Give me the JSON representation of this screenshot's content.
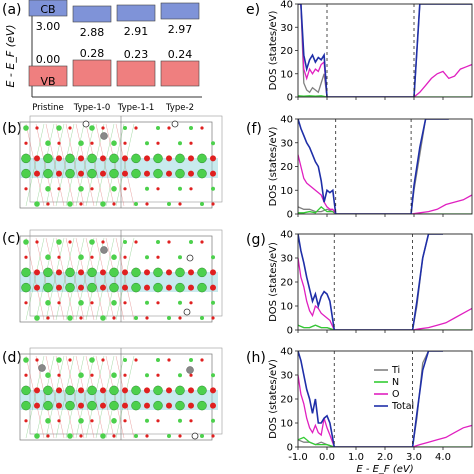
{
  "panel_labels": {
    "a": "(a)",
    "b": "(b)",
    "c": "(c)",
    "d": "(d)",
    "e": "e)",
    "f": "(f)",
    "g": "(g)",
    "h": "(h)"
  },
  "band": {
    "ylabel": "E - E_F (eV)",
    "cb_label": "CB",
    "vb_label": "VB",
    "structures": [
      "Pristine",
      "Type-1-0",
      "Type-1-1",
      "Type-2"
    ],
    "cb_values": [
      "3.00",
      "2.88",
      "2.91",
      "2.97"
    ],
    "vb_values": [
      "0.00",
      "0.28",
      "0.23",
      "0.24"
    ],
    "cb_color": "#7f93d8",
    "vb_color": "#ef7f7f"
  },
  "atoms": {
    "ti_color": "#888888",
    "n_color": "#4cd04c",
    "o_color": "#e02020",
    "layer_color": "#9ad8e0"
  },
  "chart_data": [
    {
      "type": "line",
      "panel": "e",
      "ylabel": "DOS (states/eV)",
      "xlim": [
        -1.0,
        5.0
      ],
      "ylim": [
        0,
        40
      ],
      "yticks": [
        0,
        10,
        20,
        30,
        40
      ],
      "vlines": [
        0.0,
        3.0
      ],
      "series": [
        {
          "name": "Ti",
          "color": "#808080",
          "x": [
            -1.0,
            -0.9,
            -0.8,
            -0.7,
            -0.6,
            -0.5,
            -0.4,
            -0.3,
            -0.2,
            -0.1,
            0.0,
            3.0,
            3.2,
            3.4,
            3.6,
            3.8,
            4.0,
            4.2,
            4.4,
            4.6,
            4.8,
            5.0
          ],
          "y": [
            40,
            40,
            6,
            3,
            2,
            4,
            3,
            2,
            6,
            10,
            0,
            0,
            40,
            40,
            40,
            40,
            40,
            40,
            40,
            40,
            40,
            40
          ]
        },
        {
          "name": "N",
          "color": "#33cc33",
          "x": [
            -1.0,
            -0.8,
            -0.6,
            -0.4,
            -0.2,
            0.0,
            3.0,
            5.0
          ],
          "y": [
            0.5,
            0.4,
            0.5,
            0.4,
            0.5,
            0,
            0,
            0
          ]
        },
        {
          "name": "O",
          "color": "#e020c0",
          "x": [
            -1.0,
            -0.9,
            -0.8,
            -0.7,
            -0.6,
            -0.5,
            -0.4,
            -0.3,
            -0.2,
            -0.1,
            0.0,
            3.0,
            3.2,
            3.4,
            3.6,
            3.8,
            4.0,
            4.2,
            4.4,
            4.6,
            4.8,
            5.0
          ],
          "y": [
            40,
            40,
            12,
            8,
            12,
            10,
            12,
            11,
            14,
            15,
            0,
            0,
            2,
            5,
            8,
            10,
            11,
            8,
            9,
            12,
            13,
            14
          ]
        },
        {
          "name": "Total",
          "color": "#1f2fa8",
          "x": [
            -1.0,
            -0.9,
            -0.8,
            -0.7,
            -0.6,
            -0.5,
            -0.4,
            -0.3,
            -0.2,
            -0.1,
            0.0,
            3.0,
            3.2,
            3.4,
            3.6,
            3.8,
            4.0,
            4.2,
            4.4,
            4.6,
            4.8,
            5.0
          ],
          "y": [
            40,
            40,
            18,
            12,
            16,
            18,
            15,
            17,
            16,
            18,
            0,
            0,
            40,
            40,
            40,
            40,
            40,
            40,
            40,
            40,
            40,
            40
          ]
        }
      ]
    },
    {
      "type": "line",
      "panel": "f",
      "ylabel": "DOS (states/eV)",
      "xlim": [
        -1.0,
        5.0
      ],
      "ylim": [
        0,
        40
      ],
      "yticks": [
        0,
        10,
        20,
        30,
        40
      ],
      "vlines": [
        0.3,
        2.9
      ],
      "series": [
        {
          "name": "Ti",
          "color": "#808080",
          "x": [
            -1.0,
            -0.8,
            -0.6,
            -0.4,
            -0.2,
            0.0,
            0.2,
            0.3,
            2.9,
            3.0,
            3.2,
            3.4,
            3.6,
            3.8,
            4.0,
            4.2
          ],
          "y": [
            3,
            2,
            2,
            1,
            1,
            2,
            1,
            0,
            0,
            10,
            25,
            40,
            40,
            40,
            40,
            40
          ]
        },
        {
          "name": "N",
          "color": "#33cc33",
          "x": [
            -1.0,
            -0.8,
            -0.6,
            -0.4,
            -0.2,
            0.0,
            0.2,
            0.3,
            2.9,
            5.0
          ],
          "y": [
            0.5,
            0.5,
            1,
            0.5,
            3,
            1,
            1,
            0,
            0,
            0
          ]
        },
        {
          "name": "O",
          "color": "#e020c0",
          "x": [
            -1.0,
            -0.9,
            -0.8,
            -0.7,
            -0.6,
            -0.5,
            -0.4,
            -0.3,
            -0.2,
            -0.1,
            0.0,
            0.1,
            0.2,
            0.3,
            2.9,
            3.2,
            3.5,
            3.8,
            4.1,
            4.4,
            4.7,
            5.0
          ],
          "y": [
            25,
            20,
            15,
            13,
            12,
            11,
            10,
            9,
            8,
            5,
            3,
            2,
            2,
            0,
            0,
            0.5,
            1,
            2,
            4,
            5,
            6,
            8
          ]
        },
        {
          "name": "Total",
          "color": "#1f2fa8",
          "x": [
            -1.0,
            -0.9,
            -0.8,
            -0.7,
            -0.6,
            -0.5,
            -0.4,
            -0.3,
            -0.2,
            -0.1,
            0.0,
            0.1,
            0.2,
            0.3,
            2.9,
            3.0,
            3.2,
            3.4,
            3.6,
            3.8,
            4.0,
            4.2
          ],
          "y": [
            40,
            36,
            33,
            30,
            28,
            25,
            22,
            20,
            14,
            5,
            10,
            9,
            10,
            0,
            0,
            12,
            28,
            40,
            40,
            40,
            40,
            40
          ]
        }
      ]
    },
    {
      "type": "line",
      "panel": "g",
      "ylabel": "DOS (states/eV)",
      "xlim": [
        -1.0,
        5.0
      ],
      "ylim": [
        0,
        40
      ],
      "yticks": [
        0,
        10,
        20,
        30,
        40
      ],
      "vlines": [
        0.25,
        2.95
      ],
      "series": [
        {
          "name": "Ti",
          "color": "#808080",
          "x": [
            -1.0,
            -0.8,
            -0.6,
            -0.4,
            -0.2,
            0.0,
            0.25,
            2.95,
            3.1,
            3.3,
            3.5,
            3.7,
            4.0
          ],
          "y": [
            2,
            1,
            1,
            2,
            1,
            1,
            0,
            0,
            10,
            30,
            40,
            40,
            40
          ]
        },
        {
          "name": "N",
          "color": "#33cc33",
          "x": [
            -1.0,
            -0.8,
            -0.6,
            -0.4,
            -0.2,
            0.0,
            0.25,
            2.95,
            5.0
          ],
          "y": [
            2,
            1,
            1,
            2,
            1,
            1,
            0,
            0,
            0
          ]
        },
        {
          "name": "O",
          "color": "#e020c0",
          "x": [
            -1.0,
            -0.9,
            -0.8,
            -0.7,
            -0.6,
            -0.5,
            -0.4,
            -0.3,
            -0.2,
            -0.1,
            0.0,
            0.1,
            0.25,
            2.95,
            3.2,
            3.5,
            3.8,
            4.1,
            4.4,
            4.7,
            5.0
          ],
          "y": [
            30,
            22,
            18,
            12,
            8,
            6,
            10,
            9,
            7,
            6,
            5,
            4,
            0,
            0,
            0.5,
            1,
            2,
            3,
            5,
            7,
            9
          ]
        },
        {
          "name": "Total",
          "color": "#1f2fa8",
          "x": [
            -1.0,
            -0.9,
            -0.8,
            -0.7,
            -0.6,
            -0.5,
            -0.4,
            -0.3,
            -0.2,
            -0.1,
            0.0,
            0.1,
            0.25,
            2.95,
            3.1,
            3.3,
            3.5,
            3.7,
            4.0
          ],
          "y": [
            40,
            33,
            28,
            22,
            17,
            12,
            15,
            10,
            14,
            16,
            15,
            12,
            0,
            0,
            12,
            30,
            40,
            40,
            40
          ]
        }
      ]
    },
    {
      "type": "line",
      "panel": "h",
      "ylabel": "DOS (states/eV)",
      "xlabel": "E - E_F (eV)",
      "xlim": [
        -1.0,
        5.0
      ],
      "ylim": [
        0,
        40
      ],
      "yticks": [
        0,
        10,
        20,
        30,
        40
      ],
      "xticks": [
        "-1.0",
        "0.0",
        "1.0",
        "2.0",
        "3.0",
        "4.0"
      ],
      "xtick_values": [
        -1.0,
        0.0,
        1.0,
        2.0,
        3.0,
        4.0
      ],
      "vlines": [
        0.25,
        2.95
      ],
      "legend": [
        "Ti",
        "N",
        "O",
        "Total"
      ],
      "legend_position": "right",
      "series": [
        {
          "name": "Ti",
          "color": "#808080",
          "x": [
            -1.0,
            -0.8,
            -0.6,
            -0.4,
            -0.2,
            0.0,
            0.25,
            2.95,
            3.1,
            3.3,
            3.5,
            3.7,
            4.0
          ],
          "y": [
            3,
            2,
            2,
            1,
            2,
            1,
            0,
            0,
            12,
            35,
            40,
            40,
            40
          ]
        },
        {
          "name": "N",
          "color": "#33cc33",
          "x": [
            -1.0,
            -0.8,
            -0.6,
            -0.4,
            -0.2,
            0.0,
            0.25,
            2.95,
            5.0
          ],
          "y": [
            3,
            4,
            2,
            1,
            1,
            1,
            0,
            0,
            0
          ]
        },
        {
          "name": "O",
          "color": "#e020c0",
          "x": [
            -1.0,
            -0.9,
            -0.8,
            -0.7,
            -0.6,
            -0.5,
            -0.4,
            -0.3,
            -0.2,
            -0.1,
            0.0,
            0.1,
            0.25,
            2.95,
            3.2,
            3.5,
            3.8,
            4.1,
            4.4,
            4.7,
            5.0
          ],
          "y": [
            30,
            22,
            18,
            12,
            8,
            6,
            9,
            6,
            5,
            12,
            8,
            5,
            0,
            0,
            1,
            2,
            3,
            4,
            6,
            8,
            9
          ]
        },
        {
          "name": "Total",
          "color": "#1f2fa8",
          "x": [
            -1.0,
            -0.9,
            -0.8,
            -0.7,
            -0.6,
            -0.5,
            -0.4,
            -0.3,
            -0.2,
            -0.1,
            0.0,
            0.1,
            0.25,
            2.95,
            3.1,
            3.3,
            3.5,
            3.7,
            4.0
          ],
          "y": [
            40,
            36,
            30,
            24,
            20,
            14,
            20,
            10,
            10,
            12,
            13,
            10,
            0,
            0,
            14,
            32,
            40,
            40,
            40
          ]
        }
      ]
    }
  ]
}
